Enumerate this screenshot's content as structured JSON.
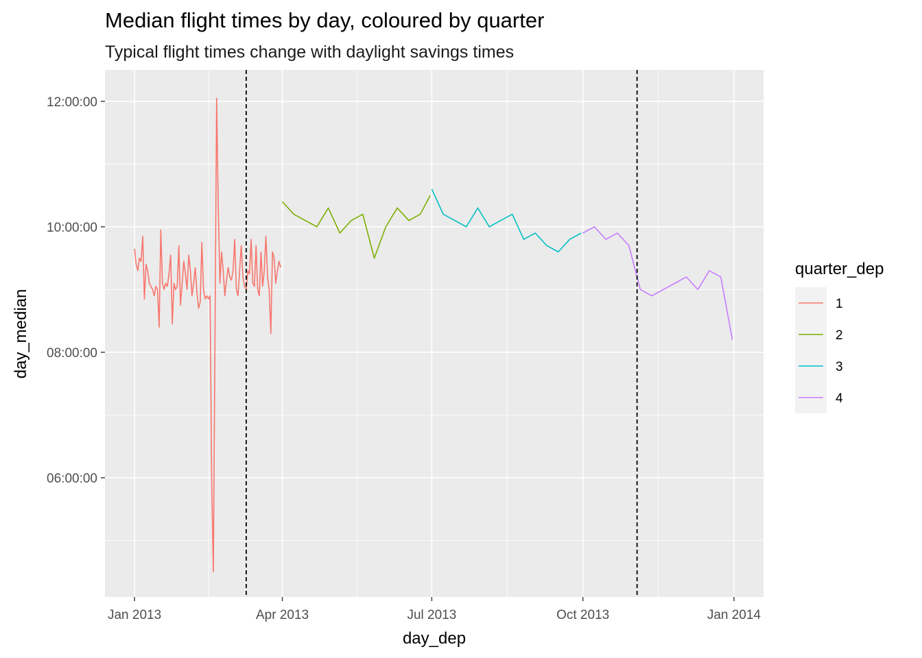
{
  "chart_data": {
    "type": "line",
    "title": "Median flight times by day, coloured by quarter",
    "subtitle": "Typical flight times change with daylight savings times",
    "xlabel": "day_dep",
    "ylabel": "day_median",
    "x_ticks": [
      "Jan 2013",
      "Apr 2013",
      "Jul 2013",
      "Oct 2013",
      "Jan 2014"
    ],
    "x_tick_dates": [
      "2013-01-01",
      "2013-04-01",
      "2013-07-01",
      "2013-10-01",
      "2014-01-01"
    ],
    "y_ticks": [
      "06:00:00",
      "08:00:00",
      "10:00:00",
      "12:00:00"
    ],
    "y_tick_hours": [
      6,
      8,
      10,
      12
    ],
    "xlim": [
      "2012-12-14",
      "2014-01-19"
    ],
    "ylim": [
      4.1,
      12.5
    ],
    "grid": true,
    "legend": {
      "title": "quarter_dep",
      "placement": "right",
      "entries": [
        "1",
        "2",
        "3",
        "4"
      ]
    },
    "vlines": [
      "2013-03-10",
      "2013-11-03"
    ],
    "series": [
      {
        "name": "1",
        "color": "#F8766D",
        "x": [
          "2013-01-01",
          "2013-01-02",
          "2013-01-03",
          "2013-01-04",
          "2013-01-05",
          "2013-01-06",
          "2013-01-07",
          "2013-01-08",
          "2013-01-09",
          "2013-01-10",
          "2013-01-11",
          "2013-01-12",
          "2013-01-13",
          "2013-01-14",
          "2013-01-15",
          "2013-01-16",
          "2013-01-17",
          "2013-01-18",
          "2013-01-19",
          "2013-01-20",
          "2013-01-21",
          "2013-01-22",
          "2013-01-23",
          "2013-01-24",
          "2013-01-25",
          "2013-01-26",
          "2013-01-27",
          "2013-01-28",
          "2013-01-29",
          "2013-01-30",
          "2013-01-31",
          "2013-02-01",
          "2013-02-02",
          "2013-02-03",
          "2013-02-04",
          "2013-02-05",
          "2013-02-06",
          "2013-02-07",
          "2013-02-08",
          "2013-02-09",
          "2013-02-10",
          "2013-02-11",
          "2013-02-12",
          "2013-02-13",
          "2013-02-14",
          "2013-02-15",
          "2013-02-16",
          "2013-02-17",
          "2013-02-18",
          "2013-02-19",
          "2013-02-20",
          "2013-02-21",
          "2013-02-22",
          "2013-02-23",
          "2013-02-24",
          "2013-02-25",
          "2013-02-26",
          "2013-02-27",
          "2013-02-28",
          "2013-03-01",
          "2013-03-02",
          "2013-03-03",
          "2013-03-04",
          "2013-03-05",
          "2013-03-06",
          "2013-03-07",
          "2013-03-08",
          "2013-03-09",
          "2013-03-10",
          "2013-03-11",
          "2013-03-12",
          "2013-03-13",
          "2013-03-14",
          "2013-03-15",
          "2013-03-16",
          "2013-03-17",
          "2013-03-18",
          "2013-03-19",
          "2013-03-20",
          "2013-03-21",
          "2013-03-22",
          "2013-03-23",
          "2013-03-24",
          "2013-03-25",
          "2013-03-26",
          "2013-03-27",
          "2013-03-28",
          "2013-03-29",
          "2013-03-30",
          "2013-03-31"
        ],
        "y": [
          9.65,
          9.4,
          9.3,
          9.5,
          9.45,
          9.85,
          8.85,
          9.4,
          9.3,
          9.1,
          9.05,
          9.0,
          8.9,
          9.05,
          9.0,
          8.4,
          9.95,
          9.1,
          9.0,
          9.1,
          9.05,
          9.25,
          9.55,
          8.45,
          9.1,
          9.0,
          9.05,
          9.7,
          8.75,
          9.1,
          9.45,
          9.25,
          9.0,
          9.55,
          9.3,
          8.9,
          9.1,
          9.35,
          8.95,
          8.7,
          8.8,
          9.75,
          9.0,
          8.85,
          8.9,
          8.85,
          8.9,
          5.95,
          4.5,
          8.25,
          12.05,
          10.3,
          9.1,
          9.6,
          9.3,
          8.9,
          9.15,
          9.35,
          9.2,
          9.15,
          9.3,
          9.8,
          9.0,
          8.9,
          9.3,
          9.7,
          9.2,
          9.05,
          9.0,
          9.3,
          9.25,
          9.8,
          9.1,
          9.05,
          9.7,
          9.0,
          8.9,
          9.6,
          9.05,
          9.3,
          9.85,
          9.2,
          9.0,
          8.3,
          9.6,
          9.5,
          9.1,
          9.3,
          9.45,
          9.35
        ]
      },
      {
        "name": "2",
        "color": "#7CAE00",
        "x": [
          "2013-04-01",
          "2013-04-08",
          "2013-04-15",
          "2013-04-22",
          "2013-04-29",
          "2013-05-06",
          "2013-05-13",
          "2013-05-20",
          "2013-05-27",
          "2013-06-03",
          "2013-06-10",
          "2013-06-17",
          "2013-06-24",
          "2013-06-30"
        ],
        "y": [
          10.4,
          10.2,
          10.1,
          10.0,
          10.3,
          9.9,
          10.1,
          10.2,
          9.5,
          10.0,
          10.3,
          10.1,
          10.2,
          10.5
        ]
      },
      {
        "name": "3",
        "color": "#00BFC4",
        "x": [
          "2013-07-01",
          "2013-07-08",
          "2013-07-15",
          "2013-07-22",
          "2013-07-29",
          "2013-08-05",
          "2013-08-12",
          "2013-08-19",
          "2013-08-26",
          "2013-09-02",
          "2013-09-09",
          "2013-09-16",
          "2013-09-23",
          "2013-09-30"
        ],
        "y": [
          10.6,
          10.2,
          10.1,
          10.0,
          10.3,
          10.0,
          10.1,
          10.2,
          9.8,
          9.9,
          9.7,
          9.6,
          9.8,
          9.9
        ]
      },
      {
        "name": "4",
        "color": "#C77CFF",
        "x": [
          "2013-10-01",
          "2013-10-08",
          "2013-10-15",
          "2013-10-22",
          "2013-10-29",
          "2013-11-05",
          "2013-11-12",
          "2013-11-19",
          "2013-11-26",
          "2013-12-03",
          "2013-12-10",
          "2013-12-17",
          "2013-12-24",
          "2013-12-31"
        ],
        "y": [
          9.9,
          10.0,
          9.8,
          9.9,
          9.7,
          9.0,
          8.9,
          9.0,
          9.1,
          9.2,
          9.0,
          9.3,
          9.2,
          8.2
        ]
      }
    ]
  }
}
